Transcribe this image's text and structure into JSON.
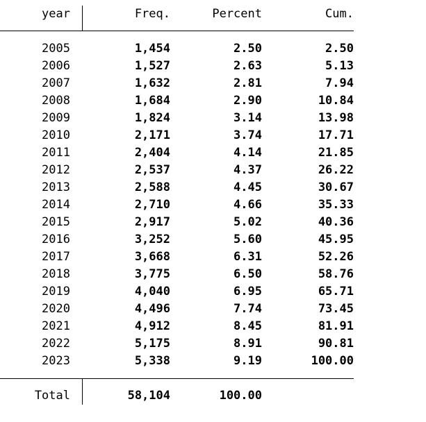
{
  "table": {
    "header": [
      "year",
      "Freq.",
      "Percent",
      "Cum."
    ],
    "rows": [
      [
        "2005",
        "1,454",
        "2.50",
        "2.50"
      ],
      [
        "2006",
        "1,527",
        "2.63",
        "5.13"
      ],
      [
        "2007",
        "1,632",
        "2.81",
        "7.94"
      ],
      [
        "2008",
        "1,684",
        "2.90",
        "10.84"
      ],
      [
        "2009",
        "1,824",
        "3.14",
        "13.98"
      ],
      [
        "2010",
        "2,171",
        "3.74",
        "17.71"
      ],
      [
        "2011",
        "2,404",
        "4.14",
        "21.85"
      ],
      [
        "2012",
        "2,537",
        "4.37",
        "26.22"
      ],
      [
        "2013",
        "2,588",
        "4.45",
        "30.67"
      ],
      [
        "2014",
        "2,710",
        "4.66",
        "35.33"
      ],
      [
        "2015",
        "2,917",
        "5.02",
        "40.36"
      ],
      [
        "2016",
        "3,252",
        "5.60",
        "45.95"
      ],
      [
        "2017",
        "3,668",
        "6.31",
        "52.26"
      ],
      [
        "2018",
        "3,775",
        "6.50",
        "58.76"
      ],
      [
        "2019",
        "4,040",
        "6.95",
        "65.71"
      ],
      [
        "2020",
        "4,496",
        "7.74",
        "73.45"
      ],
      [
        "2021",
        "4,912",
        "8.45",
        "81.91"
      ],
      [
        "2022",
        "5,175",
        "8.91",
        "90.81"
      ],
      [
        "2023",
        "5,338",
        "9.19",
        "100.00"
      ]
    ],
    "total": [
      "Total",
      "58,104",
      "100.00"
    ]
  }
}
